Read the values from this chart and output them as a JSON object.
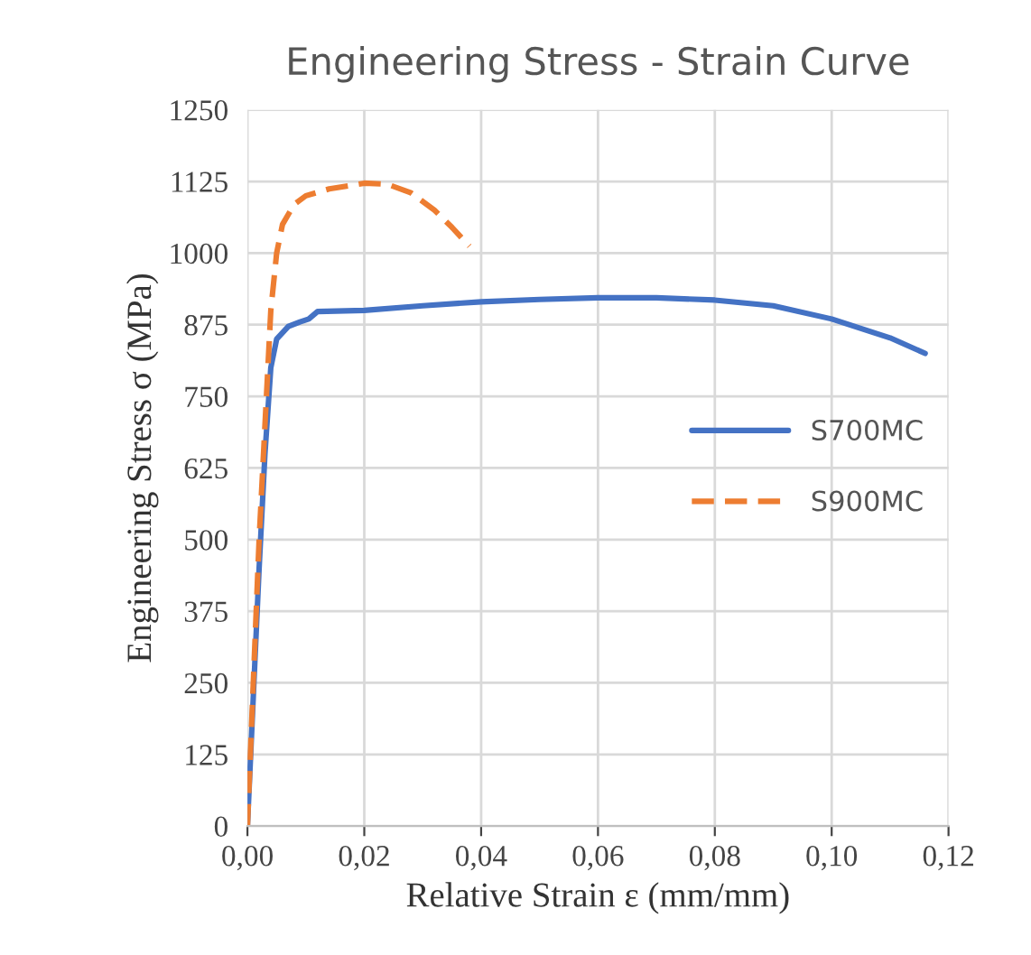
{
  "chart_data": {
    "type": "line",
    "title": "Engineering Stress - Strain Curve",
    "xlabel": "Relative Strain ε (mm/mm)",
    "ylabel": "Engineering Stress σ (MPa)",
    "xlim": [
      0,
      0.12
    ],
    "xticks": [
      {
        "value": 0,
        "label": "0,00"
      },
      {
        "value": 0.02,
        "label": "0,02"
      },
      {
        "value": 0.04,
        "label": "0,04"
      },
      {
        "value": 0.06,
        "label": "0,06"
      },
      {
        "value": 0.08,
        "label": "0,08"
      },
      {
        "value": 0.1,
        "label": "0,10"
      },
      {
        "value": 0.12,
        "label": "0,12"
      }
    ],
    "ylim": [
      0,
      1250
    ],
    "yticks": [
      0,
      125,
      250,
      375,
      500,
      625,
      750,
      875,
      1000,
      1125,
      1250
    ],
    "grid": true,
    "legend": "center right",
    "marker": "none",
    "series": [
      {
        "name": "S700MC",
        "color": "#4472c4",
        "line_style": "solid",
        "x": [
          0,
          0.002,
          0.003,
          0.004,
          0.005,
          0.007,
          0.009,
          0.0105,
          0.012,
          0.02,
          0.03,
          0.04,
          0.05,
          0.06,
          0.07,
          0.08,
          0.09,
          0.1,
          0.11,
          0.116
        ],
        "values": [
          0,
          450,
          650,
          800,
          850,
          872,
          880,
          885,
          898,
          900,
          908,
          915,
          919,
          922,
          922,
          918,
          908,
          885,
          852,
          825
        ]
      },
      {
        "name": "S900MC",
        "color": "#ed7d31",
        "line_style": "dashed",
        "x": [
          0,
          0.002,
          0.004,
          0.005,
          0.006,
          0.008,
          0.01,
          0.014,
          0.02,
          0.024,
          0.028,
          0.032,
          0.035,
          0.038
        ],
        "values": [
          0,
          500,
          900,
          1000,
          1050,
          1085,
          1100,
          1112,
          1122,
          1120,
          1105,
          1075,
          1045,
          1012
        ]
      }
    ]
  }
}
